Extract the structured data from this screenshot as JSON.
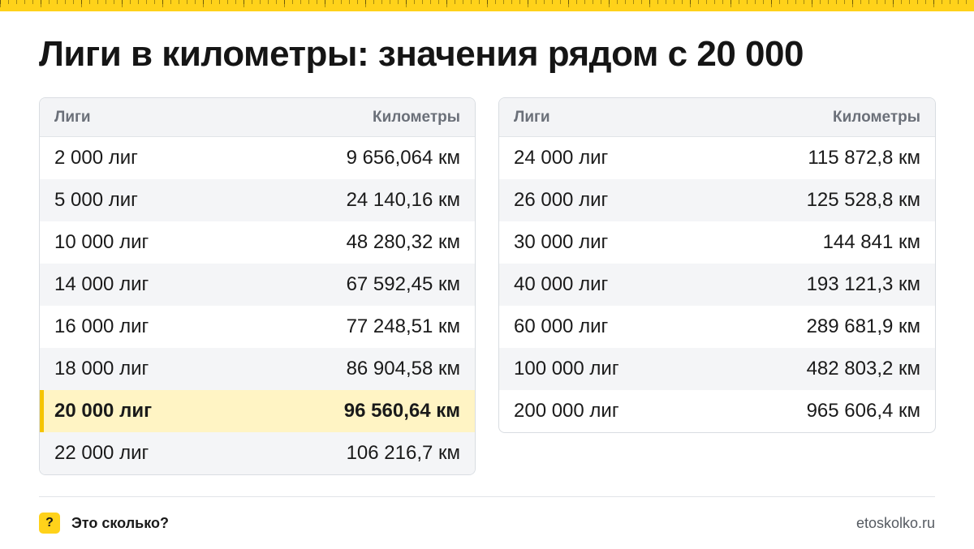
{
  "title": "Лиги в километры: значения рядом с 20 000",
  "columns": {
    "leagues": "Лиги",
    "kilometers": "Километры"
  },
  "left_table": [
    {
      "leagues": "2 000 лиг",
      "km": "9 656,064 км"
    },
    {
      "leagues": "5 000 лиг",
      "km": "24 140,16 км"
    },
    {
      "leagues": "10 000 лиг",
      "km": "48 280,32 км"
    },
    {
      "leagues": "14 000 лиг",
      "km": "67 592,45 км"
    },
    {
      "leagues": "16 000 лиг",
      "km": "77 248,51 км"
    },
    {
      "leagues": "18 000 лиг",
      "km": "86 904,58 км"
    },
    {
      "leagues": "20 000 лиг",
      "km": "96 560,64 км",
      "highlighted": true
    },
    {
      "leagues": "22 000 лиг",
      "km": "106 216,7 км"
    }
  ],
  "right_table": [
    {
      "leagues": "24 000 лиг",
      "km": "115 872,8 км"
    },
    {
      "leagues": "26 000 лиг",
      "km": "125 528,8 км"
    },
    {
      "leagues": "30 000 лиг",
      "km": "144 841 км"
    },
    {
      "leagues": "40 000 лиг",
      "km": "193 121,3 км"
    },
    {
      "leagues": "60 000 лиг",
      "km": "289 681,9 км"
    },
    {
      "leagues": "100 000 лиг",
      "km": "482 803,2 км"
    },
    {
      "leagues": "200 000 лиг",
      "km": "965 606,4 км"
    }
  ],
  "footer": {
    "badge_icon": "question-mark-icon",
    "badge_glyph": "?",
    "brand": "Это сколько?",
    "site": "etoskolko.ru"
  },
  "colors": {
    "accent": "#ffd21a",
    "highlight_bg": "#fff4c4",
    "highlight_bar": "#f5c400"
  }
}
